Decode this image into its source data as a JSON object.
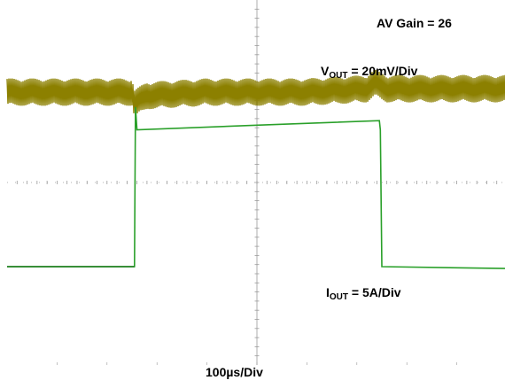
{
  "labels": {
    "gain": "AV Gain = 26",
    "vout_main": "V",
    "vout_sub": "OUT",
    "vout_scale": " = 20mV/Div",
    "iout_main": "I",
    "iout_sub": "OUT",
    "iout_scale": " = 5A/Div",
    "time_scale": "100µs/Div"
  },
  "colors": {
    "vout_trace": "#8c8000",
    "iout_trace": "#2aa02a",
    "graticule": "#9a9a9a"
  },
  "chart_data": {
    "type": "line",
    "title": "",
    "xlabel": "100µs/Div",
    "ylabel": "",
    "grid": false,
    "axis_ticks_only": true,
    "divisions": {
      "horizontal": 10,
      "vertical": 8
    },
    "x_unit": "µs",
    "xlim": [
      0,
      1000
    ],
    "series": [
      {
        "name": "VOUT",
        "scale": "20mV/Div",
        "unit": "mV",
        "x": [
          0,
          250,
          255,
          280,
          400,
          500,
          600,
          720,
          735,
          760,
          1000
        ],
        "y": [
          0,
          0,
          -5,
          -1.5,
          0,
          0,
          0,
          1.5,
          4,
          1.5,
          1.5
        ],
        "ripple_pp": 12
      },
      {
        "name": "IOUT",
        "scale": "5A/Div",
        "unit": "A",
        "x": [
          0,
          255,
          257,
          260,
          500,
          745,
          747,
          750,
          1000
        ],
        "y": [
          0,
          0,
          17.5,
          15,
          15.5,
          16,
          15,
          0,
          -0.2
        ]
      }
    ]
  }
}
